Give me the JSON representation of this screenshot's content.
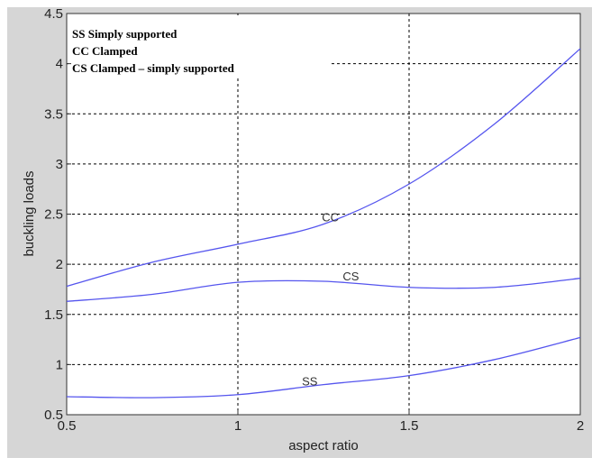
{
  "chart_data": {
    "type": "line",
    "xlabel": "aspect ratio",
    "ylabel": "buckling loads",
    "xlim": [
      0.5,
      2
    ],
    "ylim": [
      0.5,
      4.5
    ],
    "xticks": [
      "0.5",
      "1",
      "1.5",
      "2"
    ],
    "yticks": [
      "0.5",
      "1",
      "1.5",
      "2",
      "2.5",
      "3",
      "3.5",
      "4",
      "4.5"
    ],
    "grid": "dashed",
    "legend_placement": "top-left",
    "legend_text": [
      "SS Simply supported",
      "CC Clamped",
      "CS Clamped – simply supported"
    ],
    "series_color": "#5555ee",
    "series": [
      {
        "name": "CC",
        "label_on_curve": "CC",
        "label_at": [
          1.27,
          2.43
        ],
        "x": [
          0.5,
          0.75,
          1.0,
          1.25,
          1.5,
          1.75,
          2.0
        ],
        "y": [
          1.78,
          2.02,
          2.2,
          2.4,
          2.8,
          3.4,
          4.15
        ]
      },
      {
        "name": "CS",
        "label_on_curve": "CS",
        "label_at": [
          1.33,
          1.84
        ],
        "x": [
          0.5,
          0.75,
          1.0,
          1.25,
          1.5,
          1.75,
          2.0
        ],
        "y": [
          1.63,
          1.7,
          1.82,
          1.83,
          1.77,
          1.77,
          1.86
        ]
      },
      {
        "name": "SS",
        "label_on_curve": "SS",
        "label_at": [
          1.21,
          0.79
        ],
        "x": [
          0.5,
          0.75,
          1.0,
          1.25,
          1.5,
          1.75,
          2.0
        ],
        "y": [
          0.68,
          0.67,
          0.7,
          0.8,
          0.89,
          1.05,
          1.27
        ]
      }
    ]
  }
}
